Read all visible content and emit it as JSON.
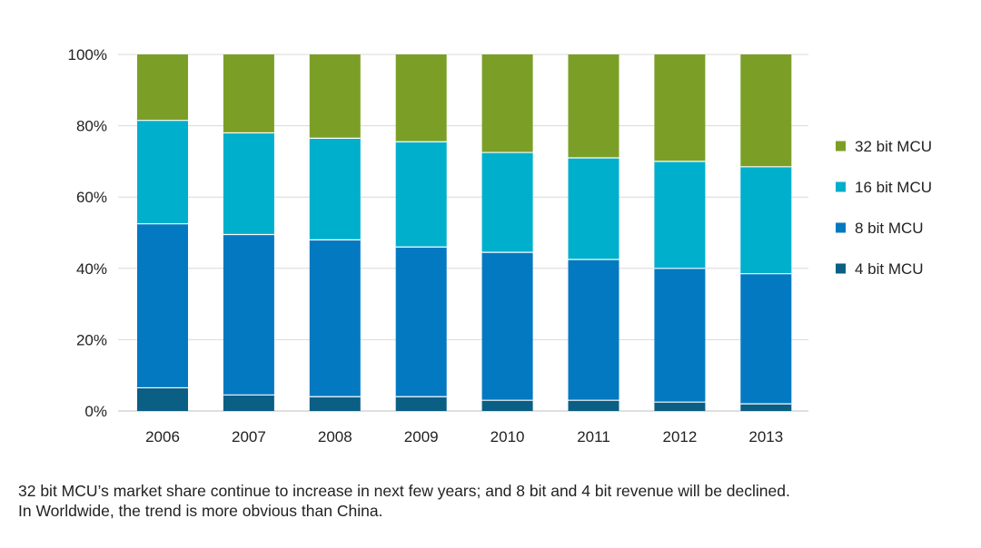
{
  "chart_data": {
    "type": "bar",
    "stacked": true,
    "categories": [
      "2006",
      "2007",
      "2008",
      "2009",
      "2010",
      "2011",
      "2012",
      "2013"
    ],
    "series": [
      {
        "name": "4 bit MCU",
        "color": "#0b5e84",
        "values": [
          6.5,
          4.5,
          4,
          4,
          3,
          3,
          2.5,
          2
        ]
      },
      {
        "name": "8 bit MCU",
        "color": "#0379c1",
        "values": [
          46,
          45,
          44,
          42,
          41.5,
          39.5,
          37.5,
          36.5
        ]
      },
      {
        "name": "16 bit MCU",
        "color": "#00afcc",
        "values": [
          29,
          28.5,
          28.5,
          29.5,
          28,
          28.5,
          30,
          30
        ]
      },
      {
        "name": "32 bit MCU",
        "color": "#7b9f26",
        "values": [
          18.5,
          22,
          23.5,
          24.5,
          27.5,
          29,
          30,
          31.5
        ]
      }
    ],
    "yticks": [
      "0%",
      "20%",
      "40%",
      "60%",
      "80%",
      "100%"
    ],
    "ylim": [
      0,
      100
    ],
    "grid": true,
    "legend_position": "right",
    "title": "",
    "xlabel": "",
    "ylabel": ""
  },
  "caption": {
    "line1": "32 bit MCU’s market share continue to increase in next few years; and 8 bit and 4 bit revenue will be declined.",
    "line2": "In Worldwide, the trend is more obvious than  China."
  }
}
